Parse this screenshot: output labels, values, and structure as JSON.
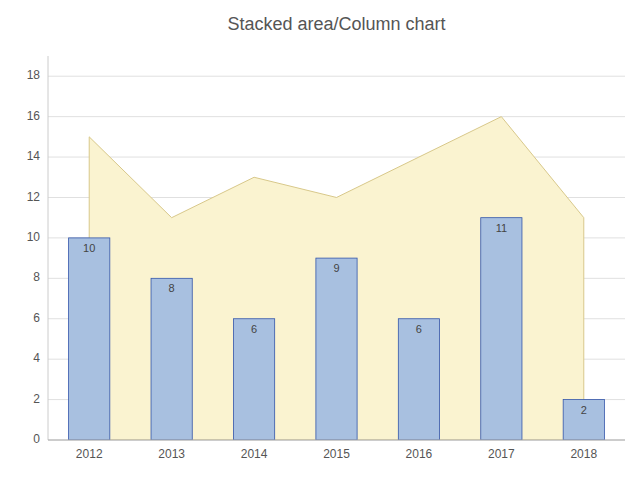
{
  "chart_data": {
    "type": "bar",
    "title": "Stacked area/Column chart",
    "categories": [
      "2012",
      "2013",
      "2014",
      "2015",
      "2016",
      "2017",
      "2018"
    ],
    "series": [
      {
        "type": "area",
        "color": "#faf3d0",
        "values": [
          15,
          11,
          13,
          12,
          14,
          16,
          11
        ]
      },
      {
        "type": "bar",
        "color": "#a8c0e0",
        "values": [
          10,
          8,
          6,
          9,
          6,
          11,
          2
        ],
        "data_labels": true
      }
    ],
    "ylim": [
      0,
      19
    ],
    "yticks": [
      0,
      2,
      4,
      6,
      8,
      10,
      12,
      14,
      16,
      18
    ],
    "grid": true
  }
}
